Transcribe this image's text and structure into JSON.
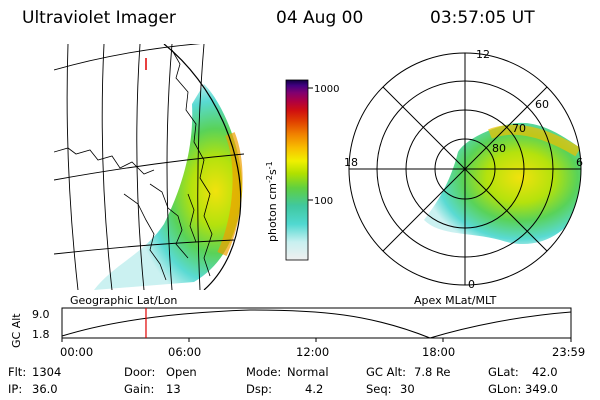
{
  "header": {
    "instrument": "Ultraviolet Imager",
    "date": "04 Aug 00",
    "time": "03:57:05 UT"
  },
  "left_panel": {
    "caption": "Geographic Lat/Lon"
  },
  "right_panel": {
    "caption": "Apex MLat/MLT",
    "mlt_labels": {
      "top": "12",
      "left": "18",
      "right": "6",
      "bottom": "0"
    },
    "lat_labels": [
      "60",
      "70",
      "80"
    ]
  },
  "colorbar": {
    "unit_label": "photon cm",
    "unit_sup1": "-2",
    "unit_s": "s",
    "unit_sup2": "-1",
    "ticks": [
      "1000",
      "100"
    ],
    "colors": [
      "#f0f0f0",
      "#c8f0f0",
      "#50d8d0",
      "#40c8a0",
      "#60d040",
      "#b0e000",
      "#f0f000",
      "#f8c000",
      "#f08000",
      "#e04000",
      "#d01010",
      "#b00040",
      "#800070",
      "#400080",
      "#100040"
    ]
  },
  "orbit_plot": {
    "ylabel": "GC Alt",
    "ytick_top": "9.0",
    "ytick_bottom": "1.8",
    "xticks": [
      "00:00",
      "06:00",
      "12:00",
      "18:00",
      "23:59"
    ],
    "marker_fraction": 0.165,
    "marker_color": "#e00000"
  },
  "status": {
    "flt_label": "Flt:",
    "flt_value": "1304",
    "ip_label": "IP:",
    "ip_value": "36.0",
    "door_label": "Door:",
    "door_value": "Open",
    "gain_label": "Gain:",
    "gain_value": "13",
    "mode_label": "Mode:",
    "mode_value": "Normal",
    "dsp_label": "Dsp:",
    "dsp_value": "4.2",
    "gcalt_label": "GC Alt:",
    "gcalt_value": "7.8 Re",
    "seq_label": "Seq:",
    "seq_value": "30",
    "glat_label": "GLat:",
    "glat_value": "42.0",
    "glon_label": "GLon:",
    "glon_value": "349.0"
  }
}
